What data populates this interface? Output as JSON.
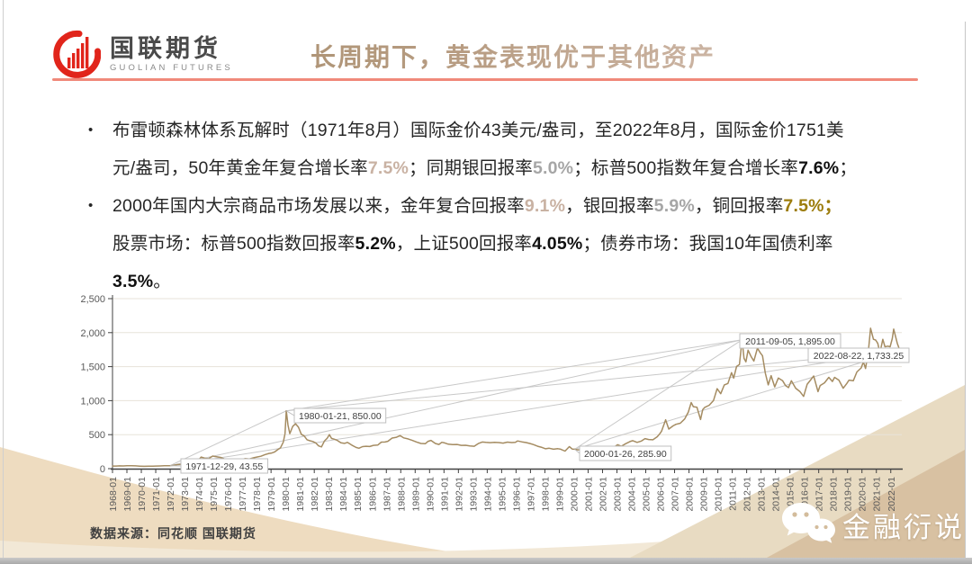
{
  "slide": {
    "logo": {
      "cn": "国联期货",
      "en": "GUOLIAN FUTURES"
    },
    "title": "长周期下，黄金表现优于其他资产",
    "bullet_marker": "•",
    "bullets": [
      {
        "segments": [
          {
            "text": "布雷顿森林体系瓦解时（1971年8月）国际金价43美元/盎司，至2022年8月，国际金价1751美",
            "style": "normal"
          },
          {
            "text": "",
            "style": "break"
          },
          {
            "text": "元/盎司，50年黄金年复合增长率",
            "style": "normal"
          },
          {
            "text": "7.5%",
            "style": "tan"
          },
          {
            "text": "；同期银回报率",
            "style": "normal"
          },
          {
            "text": "5.0%",
            "style": "gray"
          },
          {
            "text": "；标普500指数年复合增长率",
            "style": "normal"
          },
          {
            "text": "7.6%",
            "style": "dark"
          },
          {
            "text": "；",
            "style": "normal"
          }
        ]
      },
      {
        "segments": [
          {
            "text": "2000年国内大宗商品市场发展以来，金年复合回报率",
            "style": "normal"
          },
          {
            "text": "9.1%",
            "style": "tan"
          },
          {
            "text": "，银回报率",
            "style": "normal"
          },
          {
            "text": "5.9%",
            "style": "gray"
          },
          {
            "text": "，铜回报率",
            "style": "normal"
          },
          {
            "text": "7.5%；",
            "style": "gold"
          },
          {
            "text": "",
            "style": "break"
          },
          {
            "text": "股票市场：标普500指数回报率",
            "style": "normal"
          },
          {
            "text": "5.2%",
            "style": "dark"
          },
          {
            "text": "，上证500回报率",
            "style": "normal"
          },
          {
            "text": "4.05%",
            "style": "dark"
          },
          {
            "text": "；债券市场：我国10年国债利率",
            "style": "normal"
          },
          {
            "text": "",
            "style": "break"
          },
          {
            "text": "3.5%",
            "style": "dark"
          },
          {
            "text": "。",
            "style": "normal"
          }
        ]
      }
    ],
    "source": "数据来源：同花顺 国联期货",
    "watermark": "金融衍说",
    "colors": {
      "accent_red": "#f0897a",
      "logo_red": "#e1251b",
      "highlight_tan": "#c9b2a3",
      "highlight_gray": "#a6a6a6",
      "highlight_gold": "#9c7c0c"
    }
  },
  "chart_data": {
    "type": "line",
    "title": "",
    "xlabel": "",
    "ylabel": "",
    "x_range": [
      1968,
      2022.64
    ],
    "ylim": [
      0,
      2500
    ],
    "grid": true,
    "legend": "none",
    "y_ticks": [
      {
        "value": 0,
        "label": "0"
      },
      {
        "value": 500,
        "label": "500"
      },
      {
        "value": 1000,
        "label": "1,000"
      },
      {
        "value": 1500,
        "label": "1,500"
      },
      {
        "value": 2000,
        "label": "2,000"
      },
      {
        "value": 2500,
        "label": "2,500"
      }
    ],
    "x_tick_labels": [
      "1968-01",
      "1969-01",
      "1970-01",
      "1971-01",
      "1972-01",
      "1973-01",
      "1974-01",
      "1975-01",
      "1976-01",
      "1977-01",
      "1978-01",
      "1979-01",
      "1980-01",
      "1981-01",
      "1982-01",
      "1983-01",
      "1984-01",
      "1985-01",
      "1986-01",
      "1987-01",
      "1988-01",
      "1989-01",
      "1990-01",
      "1991-01",
      "1992-01",
      "1993-01",
      "1994-01",
      "1995-01",
      "1996-01",
      "1997-01",
      "1998-01",
      "1999-01",
      "2000-01",
      "2001-01",
      "2002-01",
      "2003-01",
      "2004-01",
      "2005-01",
      "2006-01",
      "2007-01",
      "2008-01",
      "2009-01",
      "2010-01",
      "2011-01",
      "2012-01",
      "2013-01",
      "2014-01",
      "2015-01",
      "2016-01",
      "2017-01",
      "2018-01",
      "2019-01",
      "2020-01",
      "2021-01",
      "2022-01"
    ],
    "series": [
      {
        "name": "gold-price",
        "points": [
          [
            1968.0,
            39
          ],
          [
            1968.25,
            38
          ],
          [
            1968.5,
            41
          ],
          [
            1968.75,
            40
          ],
          [
            1969.0,
            42
          ],
          [
            1969.3,
            43
          ],
          [
            1969.6,
            41
          ],
          [
            1969.9,
            37
          ],
          [
            1970.2,
            35
          ],
          [
            1970.5,
            36
          ],
          [
            1970.8,
            37
          ],
          [
            1971.0,
            38
          ],
          [
            1971.3,
            40
          ],
          [
            1971.6,
            42
          ],
          [
            1971.99,
            43.55
          ],
          [
            1972.2,
            48
          ],
          [
            1972.5,
            60
          ],
          [
            1972.8,
            64
          ],
          [
            1973.0,
            65
          ],
          [
            1973.2,
            85
          ],
          [
            1973.45,
            120
          ],
          [
            1973.65,
            100
          ],
          [
            1973.9,
            110
          ],
          [
            1974.15,
            170
          ],
          [
            1974.4,
            155
          ],
          [
            1974.65,
            145
          ],
          [
            1974.95,
            185
          ],
          [
            1975.2,
            176
          ],
          [
            1975.5,
            165
          ],
          [
            1975.8,
            140
          ],
          [
            1976.05,
            130
          ],
          [
            1976.3,
            128
          ],
          [
            1976.6,
            106
          ],
          [
            1976.9,
            132
          ],
          [
            1977.2,
            148
          ],
          [
            1977.5,
            143
          ],
          [
            1977.8,
            160
          ],
          [
            1978.05,
            172
          ],
          [
            1978.3,
            182
          ],
          [
            1978.6,
            208
          ],
          [
            1978.85,
            224
          ],
          [
            1979.05,
            230
          ],
          [
            1979.25,
            246
          ],
          [
            1979.45,
            278
          ],
          [
            1979.65,
            305
          ],
          [
            1979.85,
            392
          ],
          [
            1979.97,
            515
          ],
          [
            1980.06,
            850
          ],
          [
            1980.18,
            640
          ],
          [
            1980.3,
            515
          ],
          [
            1980.5,
            620
          ],
          [
            1980.7,
            660
          ],
          [
            1980.9,
            610
          ],
          [
            1981.1,
            505
          ],
          [
            1981.3,
            480
          ],
          [
            1981.5,
            425
          ],
          [
            1981.7,
            410
          ],
          [
            1981.9,
            400
          ],
          [
            1982.1,
            378
          ],
          [
            1982.3,
            335
          ],
          [
            1982.5,
            320
          ],
          [
            1982.7,
            405
          ],
          [
            1982.9,
            448
          ],
          [
            1983.05,
            500
          ],
          [
            1983.2,
            445
          ],
          [
            1983.4,
            432
          ],
          [
            1983.6,
            416
          ],
          [
            1983.85,
            380
          ],
          [
            1984.1,
            372
          ],
          [
            1984.3,
            386
          ],
          [
            1984.6,
            346
          ],
          [
            1984.9,
            312
          ],
          [
            1985.1,
            300
          ],
          [
            1985.35,
            324
          ],
          [
            1985.6,
            330
          ],
          [
            1985.85,
            326
          ],
          [
            1986.1,
            342
          ],
          [
            1986.4,
            346
          ],
          [
            1986.65,
            390
          ],
          [
            1986.9,
            392
          ],
          [
            1987.1,
            402
          ],
          [
            1987.4,
            450
          ],
          [
            1987.7,
            462
          ],
          [
            1987.95,
            486
          ],
          [
            1988.2,
            452
          ],
          [
            1988.5,
            438
          ],
          [
            1988.8,
            416
          ],
          [
            1989.1,
            392
          ],
          [
            1989.4,
            370
          ],
          [
            1989.7,
            366
          ],
          [
            1989.9,
            402
          ],
          [
            1990.1,
            416
          ],
          [
            1990.4,
            370
          ],
          [
            1990.65,
            356
          ],
          [
            1990.85,
            388
          ],
          [
            1991.05,
            378
          ],
          [
            1991.3,
            360
          ],
          [
            1991.6,
            354
          ],
          [
            1991.9,
            356
          ],
          [
            1992.2,
            342
          ],
          [
            1992.5,
            344
          ],
          [
            1992.8,
            334
          ],
          [
            1993.1,
            330
          ],
          [
            1993.4,
            372
          ],
          [
            1993.65,
            392
          ],
          [
            1993.9,
            386
          ],
          [
            1994.2,
            382
          ],
          [
            1994.5,
            386
          ],
          [
            1994.8,
            384
          ],
          [
            1995.1,
            376
          ],
          [
            1995.4,
            390
          ],
          [
            1995.7,
            384
          ],
          [
            1995.95,
            388
          ],
          [
            1996.1,
            408
          ],
          [
            1996.4,
            394
          ],
          [
            1996.7,
            384
          ],
          [
            1996.95,
            370
          ],
          [
            1997.2,
            354
          ],
          [
            1997.5,
            330
          ],
          [
            1997.8,
            312
          ],
          [
            1998.05,
            292
          ],
          [
            1998.3,
            300
          ],
          [
            1998.6,
            286
          ],
          [
            1998.9,
            294
          ],
          [
            1999.1,
            286
          ],
          [
            1999.4,
            258
          ],
          [
            1999.7,
            324
          ],
          [
            1999.9,
            288
          ],
          [
            2000.07,
            285.9
          ],
          [
            2000.3,
            276
          ],
          [
            2000.6,
            282
          ],
          [
            2000.9,
            268
          ],
          [
            2001.1,
            262
          ],
          [
            2001.3,
            257
          ],
          [
            2001.6,
            272
          ],
          [
            2001.9,
            278
          ],
          [
            2002.2,
            296
          ],
          [
            2002.5,
            320
          ],
          [
            2002.8,
            318
          ],
          [
            2003.05,
            352
          ],
          [
            2003.3,
            330
          ],
          [
            2003.6,
            366
          ],
          [
            2003.9,
            398
          ],
          [
            2004.1,
            412
          ],
          [
            2004.4,
            386
          ],
          [
            2004.7,
            406
          ],
          [
            2004.95,
            442
          ],
          [
            2005.2,
            428
          ],
          [
            2005.5,
            424
          ],
          [
            2005.8,
            470
          ],
          [
            2005.97,
            512
          ],
          [
            2006.1,
            552
          ],
          [
            2006.38,
            718
          ],
          [
            2006.6,
            582
          ],
          [
            2006.9,
            630
          ],
          [
            2007.1,
            652
          ],
          [
            2007.4,
            668
          ],
          [
            2007.7,
            732
          ],
          [
            2007.95,
            832
          ],
          [
            2008.15,
            972
          ],
          [
            2008.3,
            912
          ],
          [
            2008.55,
            902
          ],
          [
            2008.8,
            722
          ],
          [
            2008.95,
            868
          ],
          [
            2009.1,
            902
          ],
          [
            2009.4,
            932
          ],
          [
            2009.7,
            1002
          ],
          [
            2009.95,
            1176
          ],
          [
            2010.2,
            1102
          ],
          [
            2010.45,
            1232
          ],
          [
            2010.7,
            1252
          ],
          [
            2010.95,
            1412
          ],
          [
            2011.1,
            1332
          ],
          [
            2011.3,
            1502
          ],
          [
            2011.5,
            1532
          ],
          [
            2011.68,
            1895
          ],
          [
            2011.82,
            1622
          ],
          [
            2011.95,
            1572
          ],
          [
            2012.1,
            1742
          ],
          [
            2012.3,
            1652
          ],
          [
            2012.5,
            1582
          ],
          [
            2012.75,
            1772
          ],
          [
            2012.95,
            1702
          ],
          [
            2013.1,
            1662
          ],
          [
            2013.3,
            1402
          ],
          [
            2013.5,
            1232
          ],
          [
            2013.7,
            1368
          ],
          [
            2013.95,
            1202
          ],
          [
            2014.2,
            1332
          ],
          [
            2014.5,
            1292
          ],
          [
            2014.7,
            1222
          ],
          [
            2014.9,
            1192
          ],
          [
            2015.1,
            1292
          ],
          [
            2015.4,
            1182
          ],
          [
            2015.7,
            1132
          ],
          [
            2015.95,
            1062
          ],
          [
            2016.2,
            1242
          ],
          [
            2016.5,
            1322
          ],
          [
            2016.65,
            1362
          ],
          [
            2016.95,
            1132
          ],
          [
            2017.1,
            1222
          ],
          [
            2017.4,
            1262
          ],
          [
            2017.7,
            1342
          ],
          [
            2017.95,
            1282
          ],
          [
            2018.1,
            1342
          ],
          [
            2018.4,
            1302
          ],
          [
            2018.7,
            1182
          ],
          [
            2018.95,
            1252
          ],
          [
            2019.1,
            1302
          ],
          [
            2019.4,
            1292
          ],
          [
            2019.65,
            1422
          ],
          [
            2019.95,
            1482
          ],
          [
            2020.1,
            1572
          ],
          [
            2020.25,
            1472
          ],
          [
            2020.45,
            1732
          ],
          [
            2020.6,
            2065
          ],
          [
            2020.8,
            1902
          ],
          [
            2020.95,
            1892
          ],
          [
            2021.1,
            1842
          ],
          [
            2021.25,
            1702
          ],
          [
            2021.45,
            1902
          ],
          [
            2021.6,
            1792
          ],
          [
            2021.8,
            1802
          ],
          [
            2021.95,
            1792
          ],
          [
            2022.1,
            1912
          ],
          [
            2022.2,
            2052
          ],
          [
            2022.45,
            1842
          ],
          [
            2022.64,
            1733.25
          ]
        ]
      }
    ],
    "key_points": {
      "p1971": [
        1971.99,
        43.55
      ],
      "p1980": [
        1980.06,
        850
      ],
      "p2000": [
        2000.07,
        285.9
      ],
      "p2011": [
        2011.68,
        1895
      ],
      "p2022": [
        2022.64,
        1733.25
      ]
    },
    "trend_lines": [
      [
        "p1971",
        "p1980"
      ],
      [
        "p1971",
        "p2011"
      ],
      [
        "p1971",
        "p2022"
      ],
      [
        "p1980",
        "p2011"
      ],
      [
        "p1980",
        "p2022"
      ],
      [
        "p2000",
        "p2011"
      ],
      [
        "p2000",
        "p2022"
      ]
    ],
    "annotations": [
      {
        "text": "1971-12-29, 43.55",
        "point": "p1971",
        "box": [
          201,
          510
        ]
      },
      {
        "text": "1980-01-21, 850.00",
        "point": "p1980",
        "box": [
          327,
          454
        ]
      },
      {
        "text": "2011-09-05, 1,895.00",
        "point": "p2011",
        "box": [
          822,
          371
        ]
      },
      {
        "text": "2022-08-22, 1,733.25",
        "point": "p2022",
        "box": [
          898,
          387
        ]
      },
      {
        "text": "2000-01-26, 285.90",
        "point": "p2000",
        "box": [
          644,
          496
        ]
      }
    ],
    "colors": {
      "line": "#a58c62",
      "trend": "#c8c8c8",
      "grid": "#e7e3da",
      "axis": "#404040",
      "tick_text": "#595959",
      "callout_border": "#bfbfbf",
      "callout_text": "#404040"
    }
  }
}
